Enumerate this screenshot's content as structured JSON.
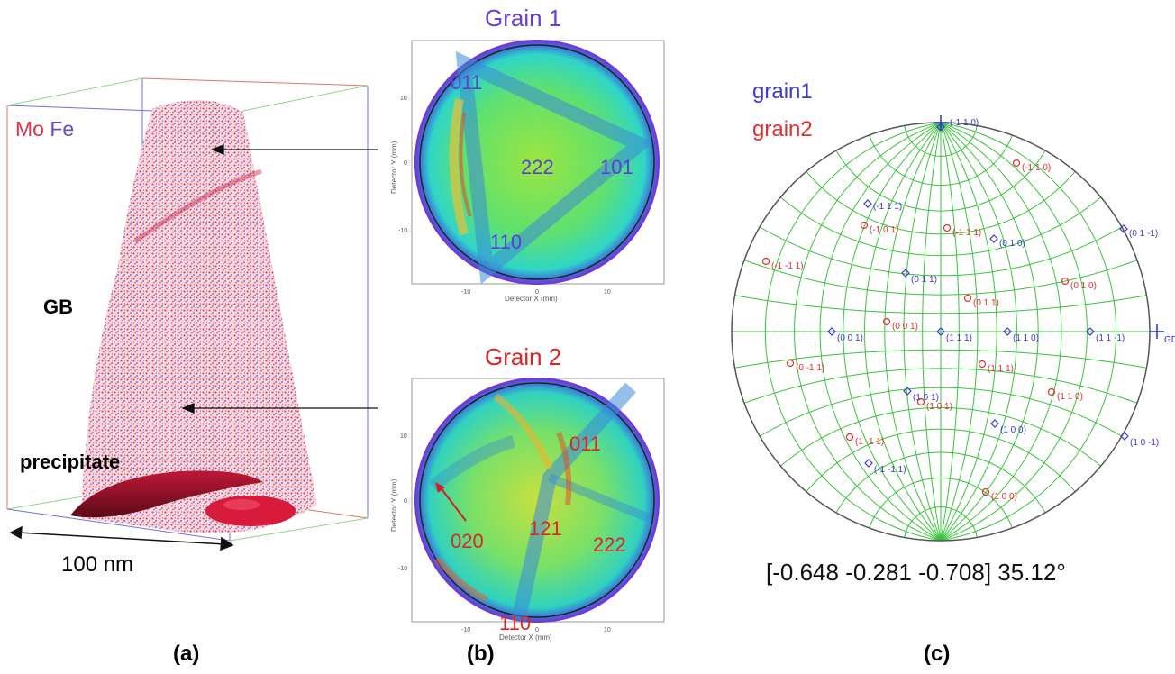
{
  "panel_a": {
    "caption": "(a)",
    "legend_mo": "Mo",
    "legend_fe": "Fe",
    "label_gb": "GB",
    "label_precipitate": "precipitate",
    "scale_bar_label": "100 nm",
    "colors": {
      "mo": "#e0304a",
      "fe": "#5b4fd8"
    }
  },
  "panel_b": {
    "caption": "(b)",
    "grain1": {
      "title": "Grain 1",
      "title_color": "#6a3fd8",
      "poles": [
        "011",
        "222",
        "101",
        "110"
      ],
      "pole_color": "#5a3fd0",
      "xlabel": "Detector X (mm)",
      "ylabel": "Detector Y (mm)",
      "xticks": [
        "-10",
        "0",
        "10"
      ],
      "yticks": [
        "10",
        "0",
        "-10"
      ]
    },
    "grain2": {
      "title": "Grain 2",
      "title_color": "#e02424",
      "poles": [
        "011",
        "020",
        "121",
        "222",
        "110"
      ],
      "pole_color": "#e02424",
      "xlabel": "Detector X (mm)",
      "ylabel": "Detector Y (mm)",
      "xticks": [
        "-10",
        "0",
        "10"
      ],
      "yticks": [
        "10",
        "0",
        "-10"
      ]
    }
  },
  "panel_c": {
    "caption": "(c)",
    "legend_grain1": "grain1",
    "legend_grain2": "grain2",
    "grain1_color": "#3a3ad0",
    "grain2_color": "#e03030",
    "direction_label": "GD",
    "rotation_text": "[-0.648 -0.281 -0.708] 35.12°",
    "grain1_poles": [
      "(-1 1 0)",
      "(-1 1 1)",
      "(0 1 0)",
      "(0 1 -1)",
      "(0 1 1)",
      "(0 0 1)",
      "(1 1 1)",
      "(1 1 0)",
      "(1 1 -1)",
      "(1 0 1)",
      "(1 0 0)",
      "(1 0 -1)",
      "(-1 -1 1)"
    ],
    "grain2_poles": [
      "(-1 1 0)",
      "(-1 0 1)",
      "(-1 1 1)",
      "(-1 -1 1)",
      "(0 1 0)",
      "(0 1 1)",
      "(0 0 1)",
      "(0 -1 1)",
      "(1 1 1)",
      "(1 1 0)",
      "(1 0 1)",
      "(1 -1 1)",
      "(1 0 0)"
    ]
  }
}
